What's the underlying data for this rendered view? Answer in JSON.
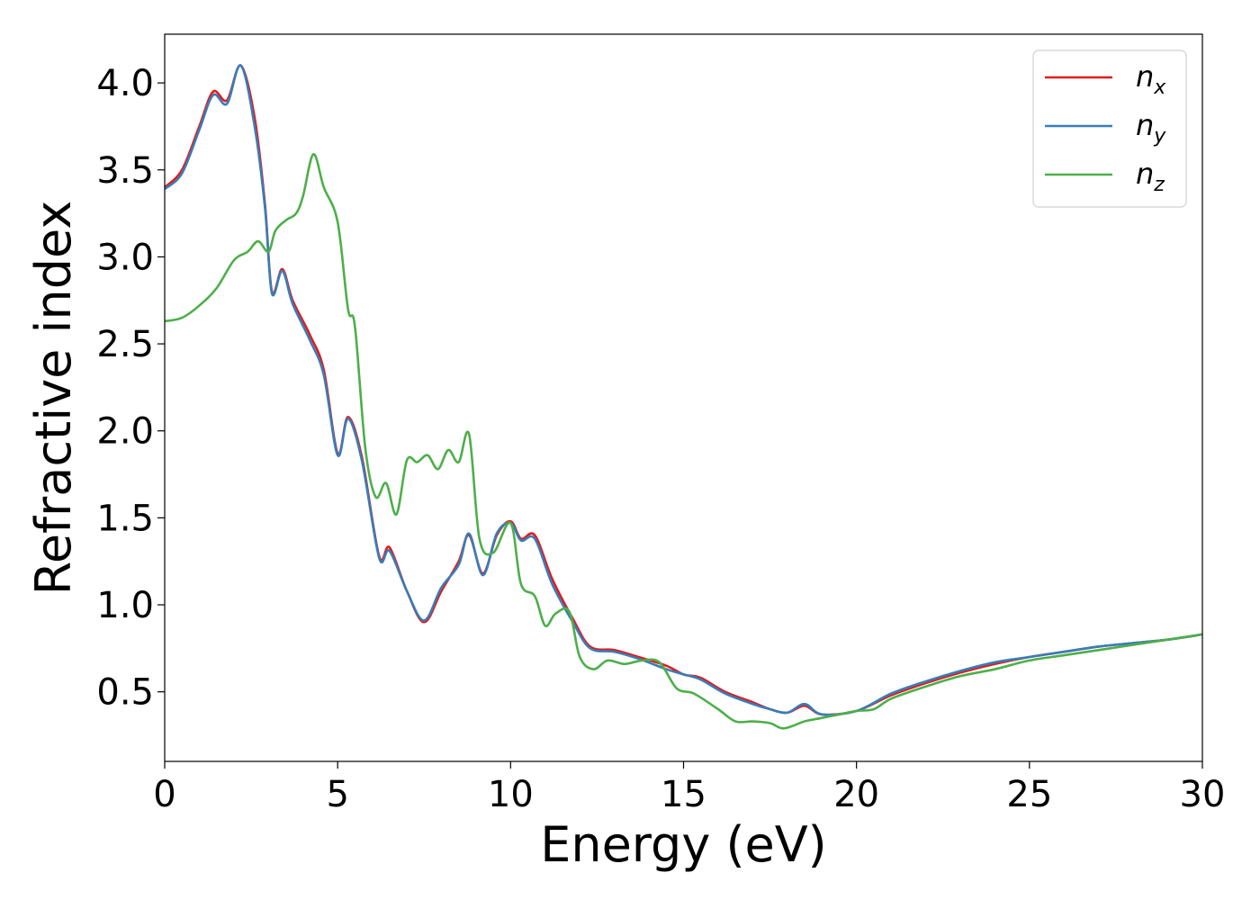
{
  "chart_data": {
    "type": "line",
    "title": "",
    "xlabel": "Energy (eV)",
    "ylabel": "Refractive index",
    "xlim": [
      0,
      30
    ],
    "ylim": [
      0.1,
      4.28
    ],
    "xticks": [
      0,
      5,
      10,
      15,
      20,
      25,
      30
    ],
    "xtick_labels": [
      "0",
      "5",
      "10",
      "15",
      "20",
      "25",
      "30"
    ],
    "yticks": [
      0.5,
      1.0,
      1.5,
      2.0,
      2.5,
      3.0,
      3.5,
      4.0
    ],
    "ytick_labels": [
      "0.5",
      "1.0",
      "1.5",
      "2.0",
      "2.5",
      "3.0",
      "3.5",
      "4.0"
    ],
    "grid": false,
    "legend_position": "top-right",
    "series": [
      {
        "name": "n_x",
        "label_base": "n",
        "label_sub": "x",
        "color": "#e41a1c",
        "x": [
          0,
          0.5,
          1.0,
          1.4,
          1.8,
          2.2,
          2.6,
          2.9,
          3.1,
          3.4,
          3.7,
          4.2,
          4.6,
          5.0,
          5.3,
          5.7,
          6.2,
          6.5,
          7.0,
          7.5,
          8.0,
          8.5,
          8.8,
          9.2,
          9.6,
          10.0,
          10.3,
          10.7,
          11.2,
          11.8,
          12.3,
          13.0,
          13.7,
          14.5,
          15.0,
          15.5,
          16.2,
          17.0,
          17.5,
          18.0,
          18.5,
          19.0,
          20.0,
          21.0,
          22.0,
          23.0,
          24.0,
          25.0,
          26.0,
          27.0,
          28.0,
          29.0,
          30.0
        ],
        "y": [
          3.4,
          3.5,
          3.75,
          3.95,
          3.9,
          4.1,
          3.8,
          3.3,
          2.8,
          2.93,
          2.75,
          2.55,
          2.35,
          1.87,
          2.08,
          1.85,
          1.28,
          1.33,
          1.08,
          0.9,
          1.08,
          1.25,
          1.4,
          1.18,
          1.4,
          1.48,
          1.38,
          1.4,
          1.15,
          0.92,
          0.76,
          0.74,
          0.7,
          0.65,
          0.6,
          0.58,
          0.5,
          0.44,
          0.4,
          0.38,
          0.42,
          0.37,
          0.39,
          0.48,
          0.55,
          0.61,
          0.66,
          0.7,
          0.73,
          0.76,
          0.78,
          0.8,
          0.83
        ]
      },
      {
        "name": "n_y",
        "label_base": "n",
        "label_sub": "y",
        "color": "#377eb8",
        "x": [
          0,
          0.5,
          1.0,
          1.4,
          1.8,
          2.2,
          2.6,
          2.9,
          3.1,
          3.4,
          3.7,
          4.2,
          4.6,
          5.0,
          5.3,
          5.7,
          6.2,
          6.5,
          7.0,
          7.5,
          8.0,
          8.5,
          8.8,
          9.2,
          9.6,
          10.0,
          10.3,
          10.7,
          11.2,
          11.8,
          12.3,
          13.0,
          13.7,
          14.5,
          15.0,
          15.5,
          16.2,
          17.0,
          17.5,
          18.0,
          18.5,
          19.0,
          20.0,
          21.0,
          22.0,
          23.0,
          24.0,
          25.0,
          26.0,
          27.0,
          28.0,
          29.0,
          30.0
        ],
        "y": [
          3.39,
          3.48,
          3.73,
          3.93,
          3.88,
          4.1,
          3.75,
          3.28,
          2.79,
          2.92,
          2.73,
          2.52,
          2.32,
          1.86,
          2.07,
          1.83,
          1.27,
          1.31,
          1.08,
          0.91,
          1.1,
          1.23,
          1.41,
          1.17,
          1.41,
          1.47,
          1.37,
          1.38,
          1.12,
          0.9,
          0.75,
          0.73,
          0.69,
          0.63,
          0.6,
          0.57,
          0.49,
          0.43,
          0.4,
          0.38,
          0.43,
          0.37,
          0.39,
          0.49,
          0.56,
          0.62,
          0.67,
          0.7,
          0.73,
          0.76,
          0.78,
          0.8,
          0.83
        ]
      },
      {
        "name": "n_z",
        "label_base": "n",
        "label_sub": "z",
        "color": "#4daf4a",
        "x": [
          0,
          0.5,
          1.0,
          1.5,
          2.0,
          2.4,
          2.7,
          3.0,
          3.2,
          3.5,
          3.8,
          4.0,
          4.3,
          4.6,
          5.0,
          5.3,
          5.5,
          5.8,
          6.1,
          6.4,
          6.7,
          7.0,
          7.3,
          7.6,
          7.9,
          8.2,
          8.5,
          8.8,
          9.1,
          9.5,
          10.0,
          10.3,
          10.7,
          11.0,
          11.3,
          11.7,
          12.0,
          12.4,
          12.8,
          13.3,
          13.8,
          14.3,
          14.8,
          15.3,
          16.0,
          16.5,
          17.0,
          17.5,
          17.9,
          18.5,
          19.0,
          19.5,
          20.0,
          20.5,
          21.0,
          22.0,
          23.0,
          24.0,
          25.0,
          26.0,
          27.0,
          28.0,
          29.0,
          30.0
        ],
        "y": [
          2.63,
          2.65,
          2.72,
          2.82,
          2.98,
          3.03,
          3.09,
          3.03,
          3.15,
          3.21,
          3.25,
          3.35,
          3.59,
          3.4,
          3.2,
          2.7,
          2.6,
          1.9,
          1.62,
          1.7,
          1.52,
          1.83,
          1.82,
          1.86,
          1.78,
          1.89,
          1.82,
          1.98,
          1.38,
          1.3,
          1.47,
          1.12,
          1.05,
          0.88,
          0.95,
          0.96,
          0.7,
          0.63,
          0.68,
          0.66,
          0.68,
          0.67,
          0.52,
          0.49,
          0.4,
          0.33,
          0.33,
          0.32,
          0.29,
          0.33,
          0.35,
          0.37,
          0.39,
          0.4,
          0.46,
          0.53,
          0.59,
          0.63,
          0.68,
          0.71,
          0.74,
          0.77,
          0.8,
          0.83
        ]
      }
    ]
  }
}
